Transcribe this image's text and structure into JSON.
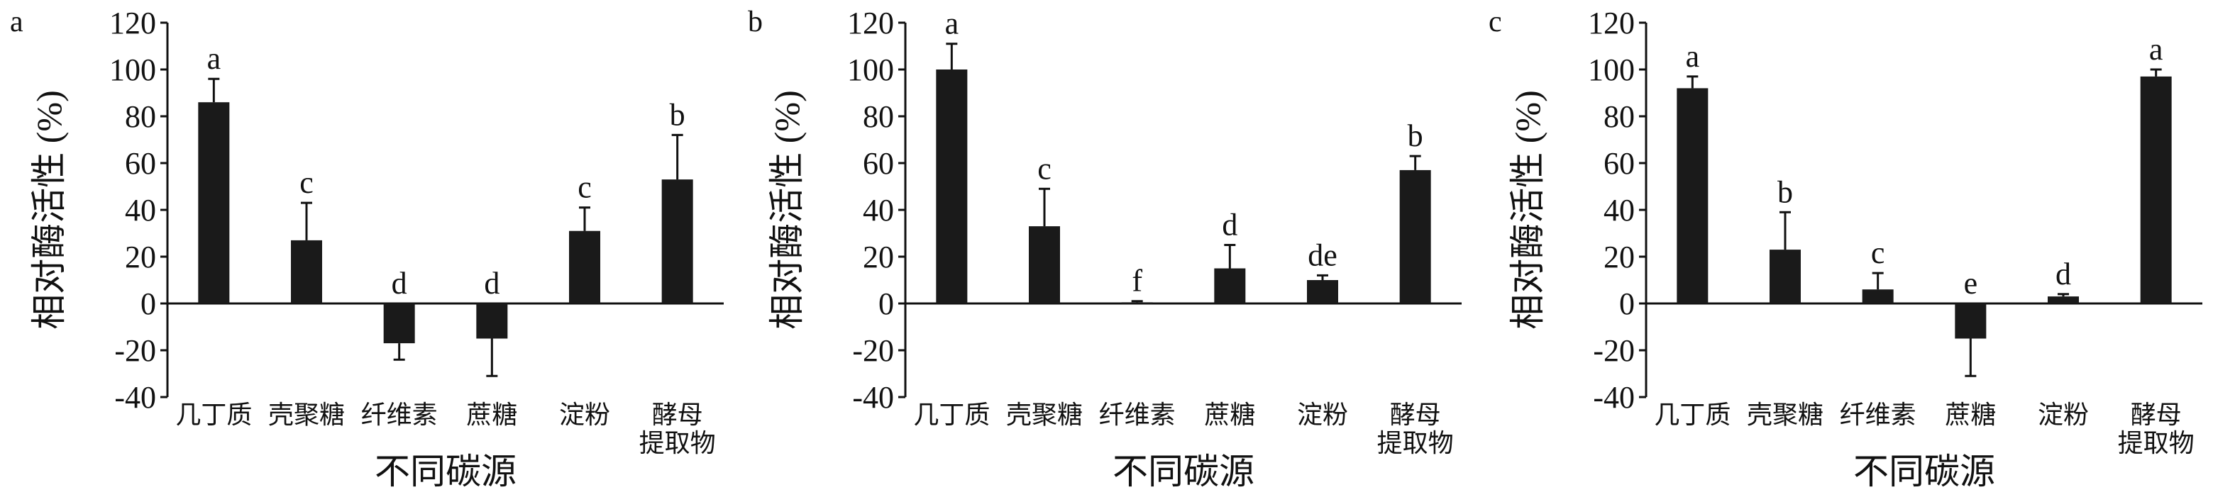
{
  "chart_data": [
    {
      "type": "bar",
      "panel_label": "a",
      "y_label": "相对酶活性 (%)",
      "x_label": "不同碳源",
      "categories": [
        "几丁质",
        "壳聚糖",
        "纤维素",
        "蔗糖",
        "淀粉",
        "酵母\n提取物"
      ],
      "values": [
        86,
        27,
        -17,
        -15,
        31,
        53
      ],
      "errors": [
        10,
        16,
        7,
        16,
        10,
        19
      ],
      "annotations": [
        "a",
        "c",
        "d",
        "d",
        "c",
        "b"
      ],
      "color": "#1a1a1a",
      "ylim": [
        -40,
        120
      ],
      "yticks": [
        -40,
        -20,
        0,
        20,
        40,
        60,
        80,
        100,
        120
      ]
    },
    {
      "type": "bar",
      "panel_label": "b",
      "y_label": "相对酶活性 (%)",
      "x_label": "不同碳源",
      "categories": [
        "几丁质",
        "壳聚糖",
        "纤维素",
        "蔗糖",
        "淀粉",
        "酵母\n提取物"
      ],
      "values": [
        100,
        33,
        0.5,
        15,
        10,
        57
      ],
      "errors": [
        11,
        16,
        0.5,
        10,
        2,
        6
      ],
      "annotations": [
        "a",
        "c",
        "f",
        "d",
        "de",
        "b"
      ],
      "color": "#1a1a1a",
      "ylim": [
        -40,
        120
      ],
      "yticks": [
        -40,
        -20,
        0,
        20,
        40,
        60,
        80,
        100,
        120
      ]
    },
    {
      "type": "bar",
      "panel_label": "c",
      "y_label": "相对酶活性 (%)",
      "x_label": "不同碳源",
      "categories": [
        "几丁质",
        "壳聚糖",
        "纤维素",
        "蔗糖",
        "淀粉",
        "酵母\n提取物"
      ],
      "values": [
        92,
        23,
        6,
        -15,
        3,
        97
      ],
      "errors": [
        5,
        16,
        7,
        16,
        1,
        3
      ],
      "annotations": [
        "a",
        "b",
        "c",
        "e",
        "d",
        "a"
      ],
      "color": "#1a1a1a",
      "ylim": [
        -40,
        120
      ],
      "yticks": [
        -40,
        -20,
        0,
        20,
        40,
        60,
        80,
        100,
        120
      ]
    }
  ]
}
